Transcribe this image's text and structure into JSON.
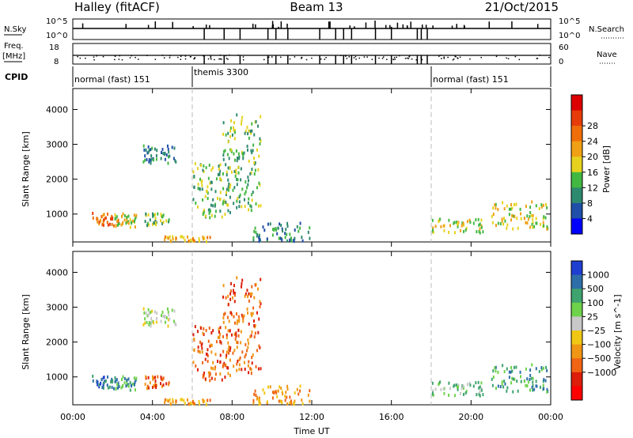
{
  "header": {
    "station": "Halley (fitACF)",
    "beam": "Beam 13",
    "date": "21/Oct/2015"
  },
  "summary": {
    "nsky_label": "N.Sky",
    "nsky_ticks": [
      "10^5",
      "10^0"
    ],
    "nsearch_label": "N.Search",
    "nsearch_ticks": [
      "10^5",
      "10^0"
    ],
    "freq_label": "Freq.",
    "freq_unit": "[MHz]",
    "freq_ticks": [
      "18",
      "8"
    ],
    "nave_label": "Nave",
    "nave_ticks": [
      "60",
      "0"
    ],
    "cpid_label": "CPID",
    "cpid_modes": [
      {
        "label": "normal (fast) 151",
        "start_hour": 0,
        "end_hour": 6
      },
      {
        "label": "themis 3300",
        "start_hour": 6,
        "end_hour": 18
      },
      {
        "label": "normal (fast) 151",
        "start_hour": 18,
        "end_hour": 24
      }
    ]
  },
  "chart_data": [
    {
      "type": "heatmap",
      "name": "power",
      "ylabel": "Slant Range [km]",
      "xlabel": "",
      "xlim": [
        0,
        24
      ],
      "ylim": [
        200,
        4600
      ],
      "yticks": [
        "1000",
        "2000",
        "3000",
        "4000"
      ],
      "colorbar": {
        "label": "Power [dB]",
        "ticks": [
          "4",
          "8",
          "12",
          "16",
          "20",
          "24",
          "28"
        ],
        "colors": [
          "#0000ff",
          "#1f4fa8",
          "#2e8a6e",
          "#42b842",
          "#e6d21e",
          "#f0a014",
          "#f06e0a",
          "#e63c0a",
          "#dc0000"
        ]
      },
      "scatter_regions": [
        {
          "h0": 0.9,
          "h1": 2.3,
          "r0": 700,
          "r1": 1100,
          "level": 6
        },
        {
          "h0": 2.0,
          "h1": 3.2,
          "r0": 650,
          "r1": 1050,
          "level": 4
        },
        {
          "h0": 3.6,
          "h1": 4.8,
          "r0": 700,
          "r1": 1050,
          "level": 3
        },
        {
          "h0": 3.5,
          "h1": 5.2,
          "r0": 2500,
          "r1": 3000,
          "level": 2
        },
        {
          "h0": 6.0,
          "h1": 7.9,
          "r0": 900,
          "r1": 2500,
          "level": 3
        },
        {
          "h0": 4.5,
          "h1": 7.0,
          "r0": 250,
          "r1": 400,
          "level": 5
        },
        {
          "h0": 7.5,
          "h1": 9.4,
          "r0": 1100,
          "r1": 3900,
          "level": 3
        },
        {
          "h0": 9.0,
          "h1": 12.0,
          "r0": 250,
          "r1": 800,
          "level": 2
        },
        {
          "h0": 18.0,
          "h1": 20.6,
          "r0": 500,
          "r1": 900,
          "level": 4
        },
        {
          "h0": 21.0,
          "h1": 23.9,
          "r0": 600,
          "r1": 1400,
          "level": 4
        }
      ]
    },
    {
      "type": "heatmap",
      "name": "velocity",
      "ylabel": "Slant Range [km]",
      "xlabel": "Time UT",
      "xlim": [
        0,
        24
      ],
      "ylim": [
        200,
        4600
      ],
      "yticks": [
        "1000",
        "2000",
        "3000",
        "4000"
      ],
      "xticks": [
        "00:00",
        "04:00",
        "08:00",
        "12:00",
        "16:00",
        "20:00",
        "00:00"
      ],
      "colorbar": {
        "label": "Velocity [m s^-1]",
        "ticks": [
          "1000",
          "500",
          "100",
          "25",
          "−25",
          "−100",
          "−500",
          "−1000"
        ],
        "colors": [
          "#1f3fd0",
          "#2e6ea8",
          "#3ea36e",
          "#6ed24a",
          "#c8c8c8",
          "#f0c814",
          "#f09614",
          "#f06414",
          "#dc1e0a",
          "#ff0000"
        ]
      },
      "scatter_regions": [
        {
          "h0": 0.9,
          "h1": 2.3,
          "r0": 700,
          "r1": 1100,
          "level": 1
        },
        {
          "h0": 2.0,
          "h1": 3.2,
          "r0": 650,
          "r1": 1050,
          "level": 2
        },
        {
          "h0": 3.6,
          "h1": 4.8,
          "r0": 700,
          "r1": 1050,
          "level": 7
        },
        {
          "h0": 3.5,
          "h1": 5.2,
          "r0": 2500,
          "r1": 3000,
          "level": 4
        },
        {
          "h0": 6.0,
          "h1": 7.9,
          "r0": 900,
          "r1": 2500,
          "level": 7
        },
        {
          "h0": 4.5,
          "h1": 7.0,
          "r0": 250,
          "r1": 400,
          "level": 6
        },
        {
          "h0": 7.5,
          "h1": 9.4,
          "r0": 1100,
          "r1": 3900,
          "level": 7
        },
        {
          "h0": 9.0,
          "h1": 12.0,
          "r0": 250,
          "r1": 800,
          "level": 6
        },
        {
          "h0": 18.0,
          "h1": 20.6,
          "r0": 500,
          "r1": 900,
          "level": 3
        },
        {
          "h0": 21.0,
          "h1": 23.9,
          "r0": 600,
          "r1": 1400,
          "level": 2
        }
      ]
    }
  ]
}
